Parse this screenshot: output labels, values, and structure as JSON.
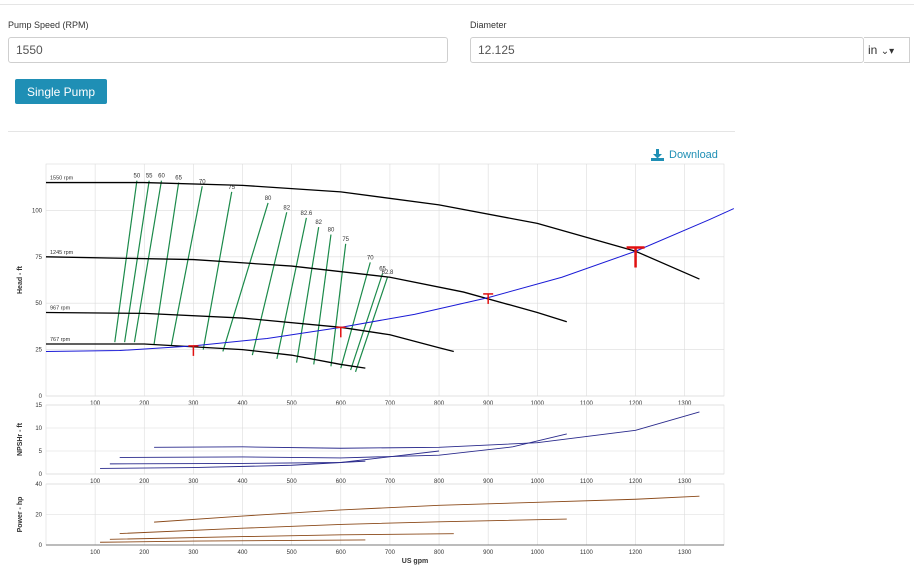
{
  "form": {
    "speed_label": "Pump Speed (RPM)",
    "speed_value": "1550",
    "diameter_label": "Diameter",
    "diameter_value": "12.125",
    "unit_value": "in"
  },
  "actions": {
    "single_pump": "Single Pump",
    "download": "Download"
  },
  "icons": {
    "download": "download-icon",
    "unit_caret": "chevron-down-icon"
  },
  "colors": {
    "speed_curve": "#000000",
    "efficiency": "#1b8a4a",
    "system_curve": "#1a1ad6",
    "operating_point": "#e01010",
    "npshr": "#2a2a8c",
    "power": "#8b4a1a",
    "accent": "#1f8fb5"
  },
  "chart_data": [
    {
      "type": "line",
      "title": "",
      "xlabel": "",
      "ylabel": "Head - ft",
      "xlim": [
        0,
        1380
      ],
      "ylim": [
        0,
        125
      ],
      "xticks": [
        "100",
        "200",
        "300",
        "400",
        "500",
        "600",
        "700",
        "800",
        "900",
        "1000",
        "1100",
        "1200",
        "1300"
      ],
      "yticks": [
        "0",
        "25",
        "50",
        "75",
        "100"
      ],
      "grid": true,
      "speed_curves": [
        {
          "label": "1550 rpm",
          "x": [
            0,
            200,
            400,
            600,
            800,
            1000,
            1200,
            1330
          ],
          "y": [
            115,
            115,
            113.5,
            110,
            103,
            93,
            78,
            63
          ]
        },
        {
          "label": "1245 rpm",
          "x": [
            0,
            300,
            500,
            700,
            850,
            1000,
            1060
          ],
          "y": [
            75,
            73.5,
            70,
            64,
            56,
            45,
            40
          ]
        },
        {
          "label": "967 rpm",
          "x": [
            0,
            200,
            400,
            600,
            700,
            800,
            830
          ],
          "y": [
            45,
            44.5,
            42,
            37,
            33,
            26,
            24
          ]
        },
        {
          "label": "767 rpm",
          "x": [
            0,
            200,
            400,
            500,
            600,
            650
          ],
          "y": [
            28,
            28,
            25,
            22,
            17,
            15
          ]
        }
      ],
      "system_curve": {
        "x": [
          0,
          150,
          300,
          450,
          600,
          750,
          900,
          1050,
          1200,
          1350,
          1400
        ],
        "y": [
          24,
          24.5,
          27,
          31,
          37,
          44,
          53,
          64,
          78,
          95,
          101
        ]
      },
      "operating_points": [
        {
          "x": 300,
          "y": 27
        },
        {
          "x": 600,
          "y": 37
        },
        {
          "x": 900,
          "y": 55
        },
        {
          "x": 1200,
          "y": 80
        }
      ],
      "efficiency_contours": [
        {
          "label": "50",
          "top": [
            185,
            116
          ],
          "bottom": [
            140,
            29
          ]
        },
        {
          "label": "55",
          "top": [
            210,
            116
          ],
          "bottom": [
            160,
            29
          ]
        },
        {
          "label": "60",
          "top": [
            235,
            116
          ],
          "bottom": [
            180,
            29
          ]
        },
        {
          "label": "65",
          "top": [
            270,
            115
          ],
          "bottom": [
            220,
            28
          ]
        },
        {
          "label": "70",
          "top": [
            318,
            113
          ],
          "bottom": [
            255,
            27
          ]
        },
        {
          "label": "75",
          "top": [
            378,
            110
          ],
          "bottom": [
            320,
            25
          ]
        },
        {
          "label": "80",
          "top": [
            452,
            104
          ],
          "bottom": [
            360,
            24
          ]
        },
        {
          "label": "82",
          "top": [
            490,
            99
          ],
          "bottom": [
            420,
            22
          ]
        },
        {
          "label": "82.6",
          "top": [
            530,
            96
          ],
          "bottom": [
            470,
            20
          ]
        },
        {
          "label": "82",
          "top": [
            555,
            91
          ],
          "bottom": [
            510,
            18
          ]
        },
        {
          "label": "80",
          "top": [
            580,
            87
          ],
          "bottom": [
            545,
            17
          ]
        },
        {
          "label": "75",
          "top": [
            610,
            82
          ],
          "bottom": [
            580,
            16
          ]
        },
        {
          "label": "70",
          "top": [
            660,
            72
          ],
          "bottom": [
            600,
            15
          ]
        },
        {
          "label": "65",
          "top": [
            685,
            66
          ],
          "bottom": [
            620,
            14
          ]
        },
        {
          "label": "62.8",
          "top": [
            695,
            64
          ],
          "bottom": [
            630,
            13
          ]
        }
      ],
      "annotations": [
        "50",
        "55",
        "60",
        "65",
        "70",
        "75",
        "80",
        "82",
        "82.6",
        "82",
        "80",
        "75",
        "70",
        "65",
        "62.8"
      ]
    },
    {
      "type": "line",
      "ylabel": "NPSHr - ft",
      "ylim": [
        0,
        15
      ],
      "yticks": [
        "0",
        "5",
        "10",
        "15"
      ],
      "xticks": [
        "100",
        "200",
        "300",
        "400",
        "500",
        "600",
        "700",
        "800",
        "900",
        "1000",
        "1100",
        "1200",
        "1300"
      ],
      "series": [
        {
          "x": [
            220,
            400,
            600,
            800,
            1000,
            1200,
            1330
          ],
          "y": [
            5.8,
            5.9,
            5.6,
            5.8,
            6.8,
            9.5,
            13.5
          ]
        },
        {
          "x": [
            150,
            400,
            600,
            800,
            950,
            1060
          ],
          "y": [
            3.6,
            3.7,
            3.5,
            4.1,
            5.9,
            8.7
          ]
        },
        {
          "x": [
            130,
            400,
            600,
            800
          ],
          "y": [
            2.2,
            2.3,
            2.5,
            5.0
          ]
        },
        {
          "x": [
            110,
            300,
            500,
            650
          ],
          "y": [
            1.2,
            1.4,
            1.9,
            2.8
          ]
        }
      ]
    },
    {
      "type": "line",
      "ylabel": "Power - hp",
      "xlabel": "US gpm",
      "ylim": [
        0,
        40
      ],
      "yticks": [
        "0",
        "20",
        "40"
      ],
      "xticks": [
        "100",
        "200",
        "300",
        "400",
        "500",
        "600",
        "700",
        "800",
        "900",
        "1000",
        "1100",
        "1200",
        "1300"
      ],
      "series": [
        {
          "x": [
            220,
            400,
            600,
            800,
            1000,
            1200,
            1330
          ],
          "y": [
            15,
            19,
            23,
            26,
            28,
            30,
            32
          ]
        },
        {
          "x": [
            150,
            400,
            600,
            800,
            1060
          ],
          "y": [
            7.5,
            11,
            13.5,
            15.2,
            17
          ]
        },
        {
          "x": [
            130,
            400,
            600,
            830
          ],
          "y": [
            3.7,
            5.5,
            6.7,
            7.4
          ]
        },
        {
          "x": [
            110,
            300,
            500,
            650
          ],
          "y": [
            1.8,
            2.6,
            3.0,
            3.3
          ]
        }
      ]
    }
  ]
}
